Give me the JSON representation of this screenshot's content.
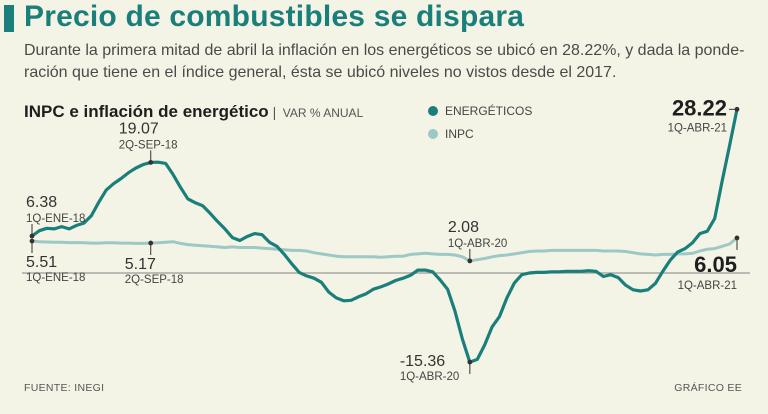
{
  "headline": "Precio de combustibles se dispara",
  "lede": "Durante la primera mitad de abril la inflación en los energéticos se ubicó en 28.22%, y dada la ponde- ración que tiene en el índice general, ésta se ubicó niveles no vistos desde el 2017.",
  "footer": {
    "source": "FUENTE: INEGI",
    "credit": "GRÁFICO EE"
  },
  "colors": {
    "accent": "#1a7f7a",
    "energeticos": "#1a7f7a",
    "inpc": "#9cc8c6",
    "background": "#f4f4e6"
  },
  "chart_data": {
    "type": "line",
    "title": "INPC e inflación de energético",
    "subtitle": "VAR % ANUAL",
    "legend_position": "top-center",
    "ylim": [
      -17,
      29
    ],
    "zero_line": true,
    "grid": false,
    "series": [
      {
        "name": "ENERGÉTICOS",
        "color": "#1a7f7a",
        "values": [
          6.38,
          7.3,
          7.7,
          7.6,
          8.0,
          7.6,
          8.2,
          8.6,
          9.9,
          12.2,
          14.3,
          15.4,
          16.3,
          17.3,
          18.1,
          18.7,
          19.07,
          19.1,
          18.9,
          17.0,
          14.8,
          12.8,
          12.1,
          11.6,
          10.3,
          8.9,
          7.6,
          6.1,
          5.6,
          6.3,
          6.8,
          6.6,
          5.3,
          4.6,
          3.2,
          1.6,
          0.1,
          -0.5,
          -0.9,
          -1.6,
          -3.3,
          -4.3,
          -4.8,
          -4.7,
          -4.1,
          -3.6,
          -2.8,
          -2.4,
          -1.9,
          -1.3,
          -0.9,
          -0.4,
          0.5,
          0.5,
          0.2,
          -1.2,
          -2.8,
          -6.6,
          -11.4,
          -15.36,
          -14.9,
          -12.4,
          -9.3,
          -7.5,
          -4.3,
          -1.7,
          -0.3,
          0.0,
          0.1,
          0.1,
          0.2,
          0.2,
          0.3,
          0.3,
          0.3,
          0.4,
          0.3,
          -0.6,
          -0.3,
          -0.8,
          -2.1,
          -2.9,
          -3.1,
          -2.9,
          -1.8,
          0.3,
          2.2,
          3.6,
          4.2,
          5.2,
          6.8,
          7.2,
          9.4,
          15.9,
          22.0,
          28.22
        ]
      },
      {
        "name": "INPC",
        "color": "#9cc8c6",
        "values": [
          5.51,
          5.4,
          5.35,
          5.3,
          5.3,
          5.25,
          5.25,
          5.2,
          5.15,
          5.15,
          5.2,
          5.2,
          5.15,
          5.15,
          5.1,
          5.1,
          5.17,
          5.2,
          5.3,
          5.4,
          5.1,
          4.9,
          4.8,
          4.7,
          4.6,
          4.5,
          4.4,
          4.5,
          4.4,
          4.4,
          4.4,
          4.3,
          4.2,
          4.1,
          4.0,
          3.9,
          3.9,
          3.8,
          3.5,
          3.3,
          3.1,
          2.9,
          2.8,
          2.8,
          2.8,
          2.8,
          2.8,
          2.7,
          2.8,
          2.9,
          2.9,
          3.2,
          3.3,
          3.4,
          3.3,
          3.2,
          3.2,
          3.1,
          2.8,
          2.08,
          2.3,
          2.5,
          2.8,
          3.0,
          3.1,
          3.3,
          3.5,
          3.7,
          3.8,
          3.8,
          3.9,
          3.9,
          3.9,
          3.9,
          3.9,
          3.9,
          3.9,
          3.8,
          3.8,
          3.8,
          3.7,
          3.5,
          3.3,
          3.2,
          3.1,
          3.2,
          3.2,
          3.3,
          3.3,
          3.4,
          3.8,
          4.1,
          4.2,
          4.6,
          5.0,
          6.05
        ]
      }
    ],
    "annotations": [
      {
        "series": 0,
        "index": 0,
        "value": "6.38",
        "label": "1Q-ENE-18",
        "place": "above",
        "emphasis": false
      },
      {
        "series": 0,
        "index": 16,
        "value": "19.07",
        "label": "2Q-SEP-18",
        "place": "above",
        "emphasis": false
      },
      {
        "series": 0,
        "index": 59,
        "value": "-15.36",
        "label": "1Q-ABR-20",
        "place": "below",
        "emphasis": false
      },
      {
        "series": 0,
        "index": 95,
        "value": "28.22",
        "label": "1Q-ABR-21",
        "place": "left",
        "emphasis": true
      },
      {
        "series": 1,
        "index": 0,
        "value": "5.51",
        "label": "1Q-ENE-18",
        "place": "below",
        "emphasis": false
      },
      {
        "series": 1,
        "index": 16,
        "value": "5.17",
        "label": "2Q-SEP-18",
        "place": "below",
        "emphasis": false
      },
      {
        "series": 1,
        "index": 59,
        "value": "2.08",
        "label": "1Q-ABR-20",
        "place": "above",
        "emphasis": false
      },
      {
        "series": 1,
        "index": 95,
        "value": "6.05",
        "label": "1Q-ABR-21",
        "place": "below-left",
        "emphasis": true
      }
    ]
  }
}
